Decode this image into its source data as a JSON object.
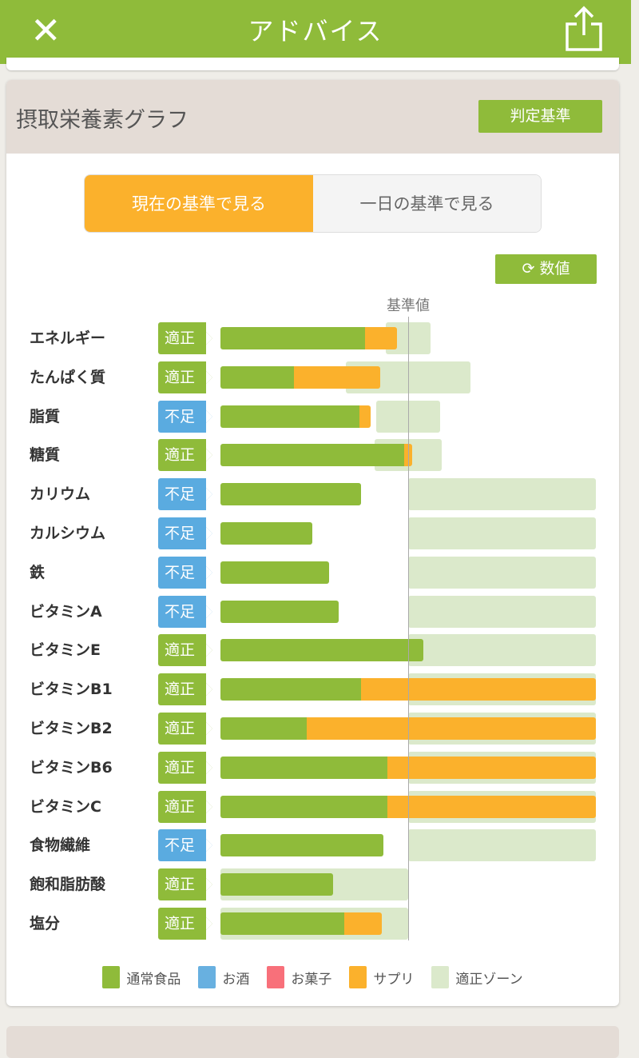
{
  "header": {
    "title": "アドバイス",
    "close_icon": "close-icon",
    "share_icon": "share-icon"
  },
  "section": {
    "title": "摂取栄養素グラフ",
    "criteria_button": "判定基準"
  },
  "toggle": {
    "current": "現在の基準で見る",
    "daily": "一日の基準で見る",
    "selected": "current"
  },
  "value_button": "数値",
  "colors": {
    "normal": "#8fbb3a",
    "alcohol": "#68b0e0",
    "snack": "#f8707a",
    "supplement": "#fbb12c",
    "zone": "#dbe9cb",
    "ok": "#8fbb3a",
    "low": "#5aabe0"
  },
  "chart_data": {
    "type": "bar",
    "title": "摂取栄養素グラフ",
    "reference_label": "基準値",
    "reference_value": 100,
    "xlim": [
      0,
      200
    ],
    "unit": "% of reference (estimated)",
    "rows": [
      {
        "name": "エネルギー",
        "status": "適正",
        "normal": 77,
        "supplement": 17,
        "zone": [
          88,
          112
        ]
      },
      {
        "name": "たんぱく質",
        "status": "適正",
        "normal": 39,
        "supplement": 46,
        "zone": [
          67,
          133
        ]
      },
      {
        "name": "脂質",
        "status": "不足",
        "normal": 74,
        "supplement": 6,
        "zone": [
          83,
          117
        ]
      },
      {
        "name": "糖質",
        "status": "適正",
        "normal": 98,
        "supplement": 4,
        "zone": [
          82,
          118
        ]
      },
      {
        "name": "カリウム",
        "status": "不足",
        "normal": 75,
        "supplement": 0,
        "zone": [
          100,
          200
        ]
      },
      {
        "name": "カルシウム",
        "status": "不足",
        "normal": 49,
        "supplement": 0,
        "zone": [
          100,
          200
        ]
      },
      {
        "name": "鉄",
        "status": "不足",
        "normal": 58,
        "supplement": 0,
        "zone": [
          100,
          200
        ]
      },
      {
        "name": "ビタミンA",
        "status": "不足",
        "normal": 63,
        "supplement": 0,
        "zone": [
          100,
          200
        ]
      },
      {
        "name": "ビタミンE",
        "status": "適正",
        "normal": 108,
        "supplement": 0,
        "zone": [
          100,
          200
        ]
      },
      {
        "name": "ビタミンB1",
        "status": "適正",
        "normal": 75,
        "supplement": 125,
        "zone": [
          100,
          200
        ]
      },
      {
        "name": "ビタミンB2",
        "status": "適正",
        "normal": 46,
        "supplement": 154,
        "zone": [
          100,
          200
        ]
      },
      {
        "name": "ビタミンB6",
        "status": "適正",
        "normal": 89,
        "supplement": 111,
        "zone": [
          100,
          200
        ]
      },
      {
        "name": "ビタミンC",
        "status": "適正",
        "normal": 89,
        "supplement": 111,
        "zone": [
          100,
          200
        ]
      },
      {
        "name": "食物繊維",
        "status": "不足",
        "normal": 87,
        "supplement": 0,
        "zone": [
          100,
          200
        ]
      },
      {
        "name": "飽和脂肪酸",
        "status": "適正",
        "normal": 60,
        "supplement": 0,
        "zone": [
          0,
          100
        ]
      },
      {
        "name": "塩分",
        "status": "適正",
        "normal": 66,
        "supplement": 20,
        "zone": [
          0,
          100
        ]
      }
    ],
    "legend": [
      {
        "label": "通常食品",
        "color": "#8fbb3a"
      },
      {
        "label": "お酒",
        "color": "#68b0e0"
      },
      {
        "label": "お菓子",
        "color": "#f8707a"
      },
      {
        "label": "サプリ",
        "color": "#fbb12c"
      },
      {
        "label": "適正ゾーン",
        "color": "#dbe9cb"
      }
    ]
  }
}
